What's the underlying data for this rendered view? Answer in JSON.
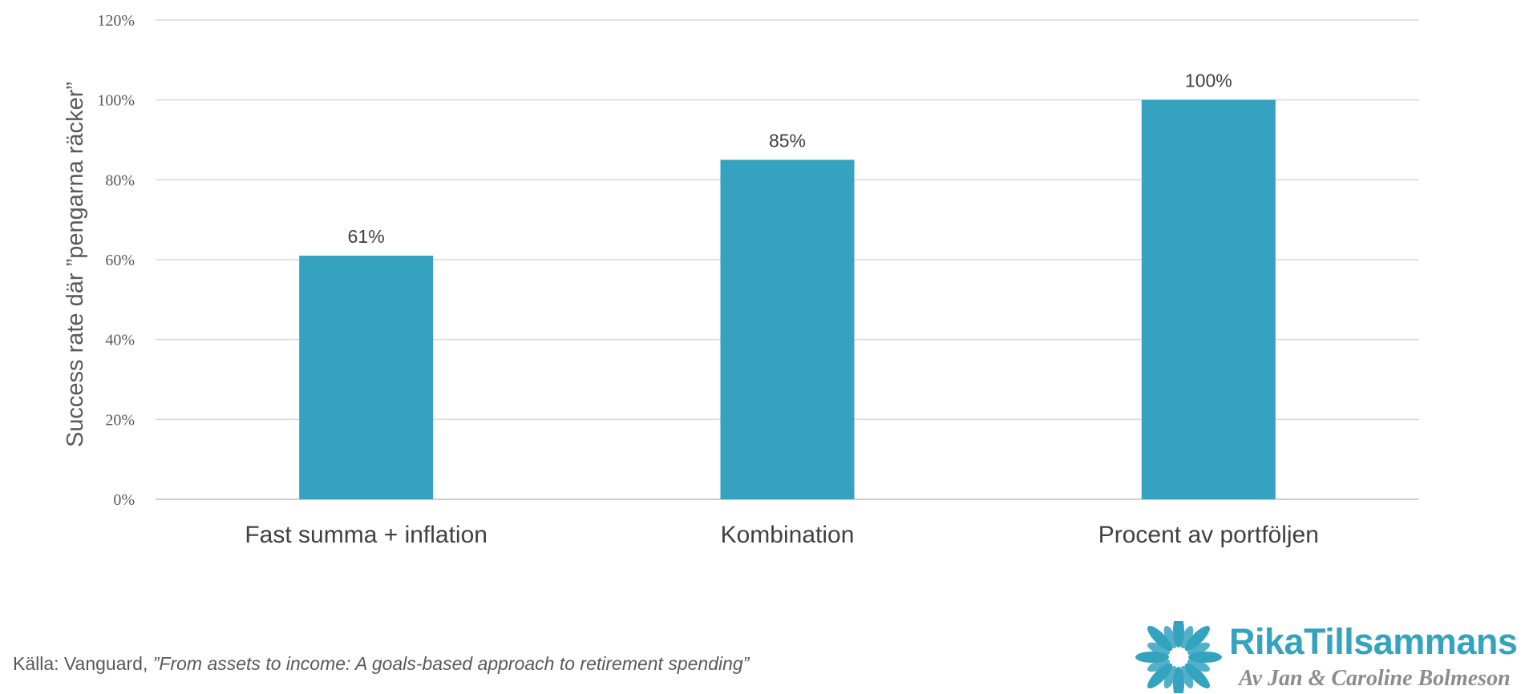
{
  "chart_data": {
    "type": "bar",
    "categories": [
      "Fast summa + inflation",
      "Kombination",
      "Procent av portföljen"
    ],
    "values": [
      61,
      85,
      100
    ],
    "data_labels": [
      "61%",
      "85%",
      "100%"
    ],
    "title": "",
    "xlabel": "",
    "ylabel": "Success rate där ”pengarna räcker”",
    "ylim": [
      0,
      120
    ],
    "yticks": [
      "0%",
      "20%",
      "40%",
      "60%",
      "80%",
      "100%",
      "120%"
    ],
    "grid": true,
    "bar_color": "#35a3bf"
  },
  "footer": {
    "source_prefix": "Källa: Vanguard, ",
    "source_title": "”From assets to income: A goals-based approach to retirement spending”"
  },
  "logo": {
    "name": "RikaTillsammans",
    "tagline": "Av Jan & Caroline Bolmeson",
    "color": "#34a3bf",
    "icon": "flower-icon"
  }
}
